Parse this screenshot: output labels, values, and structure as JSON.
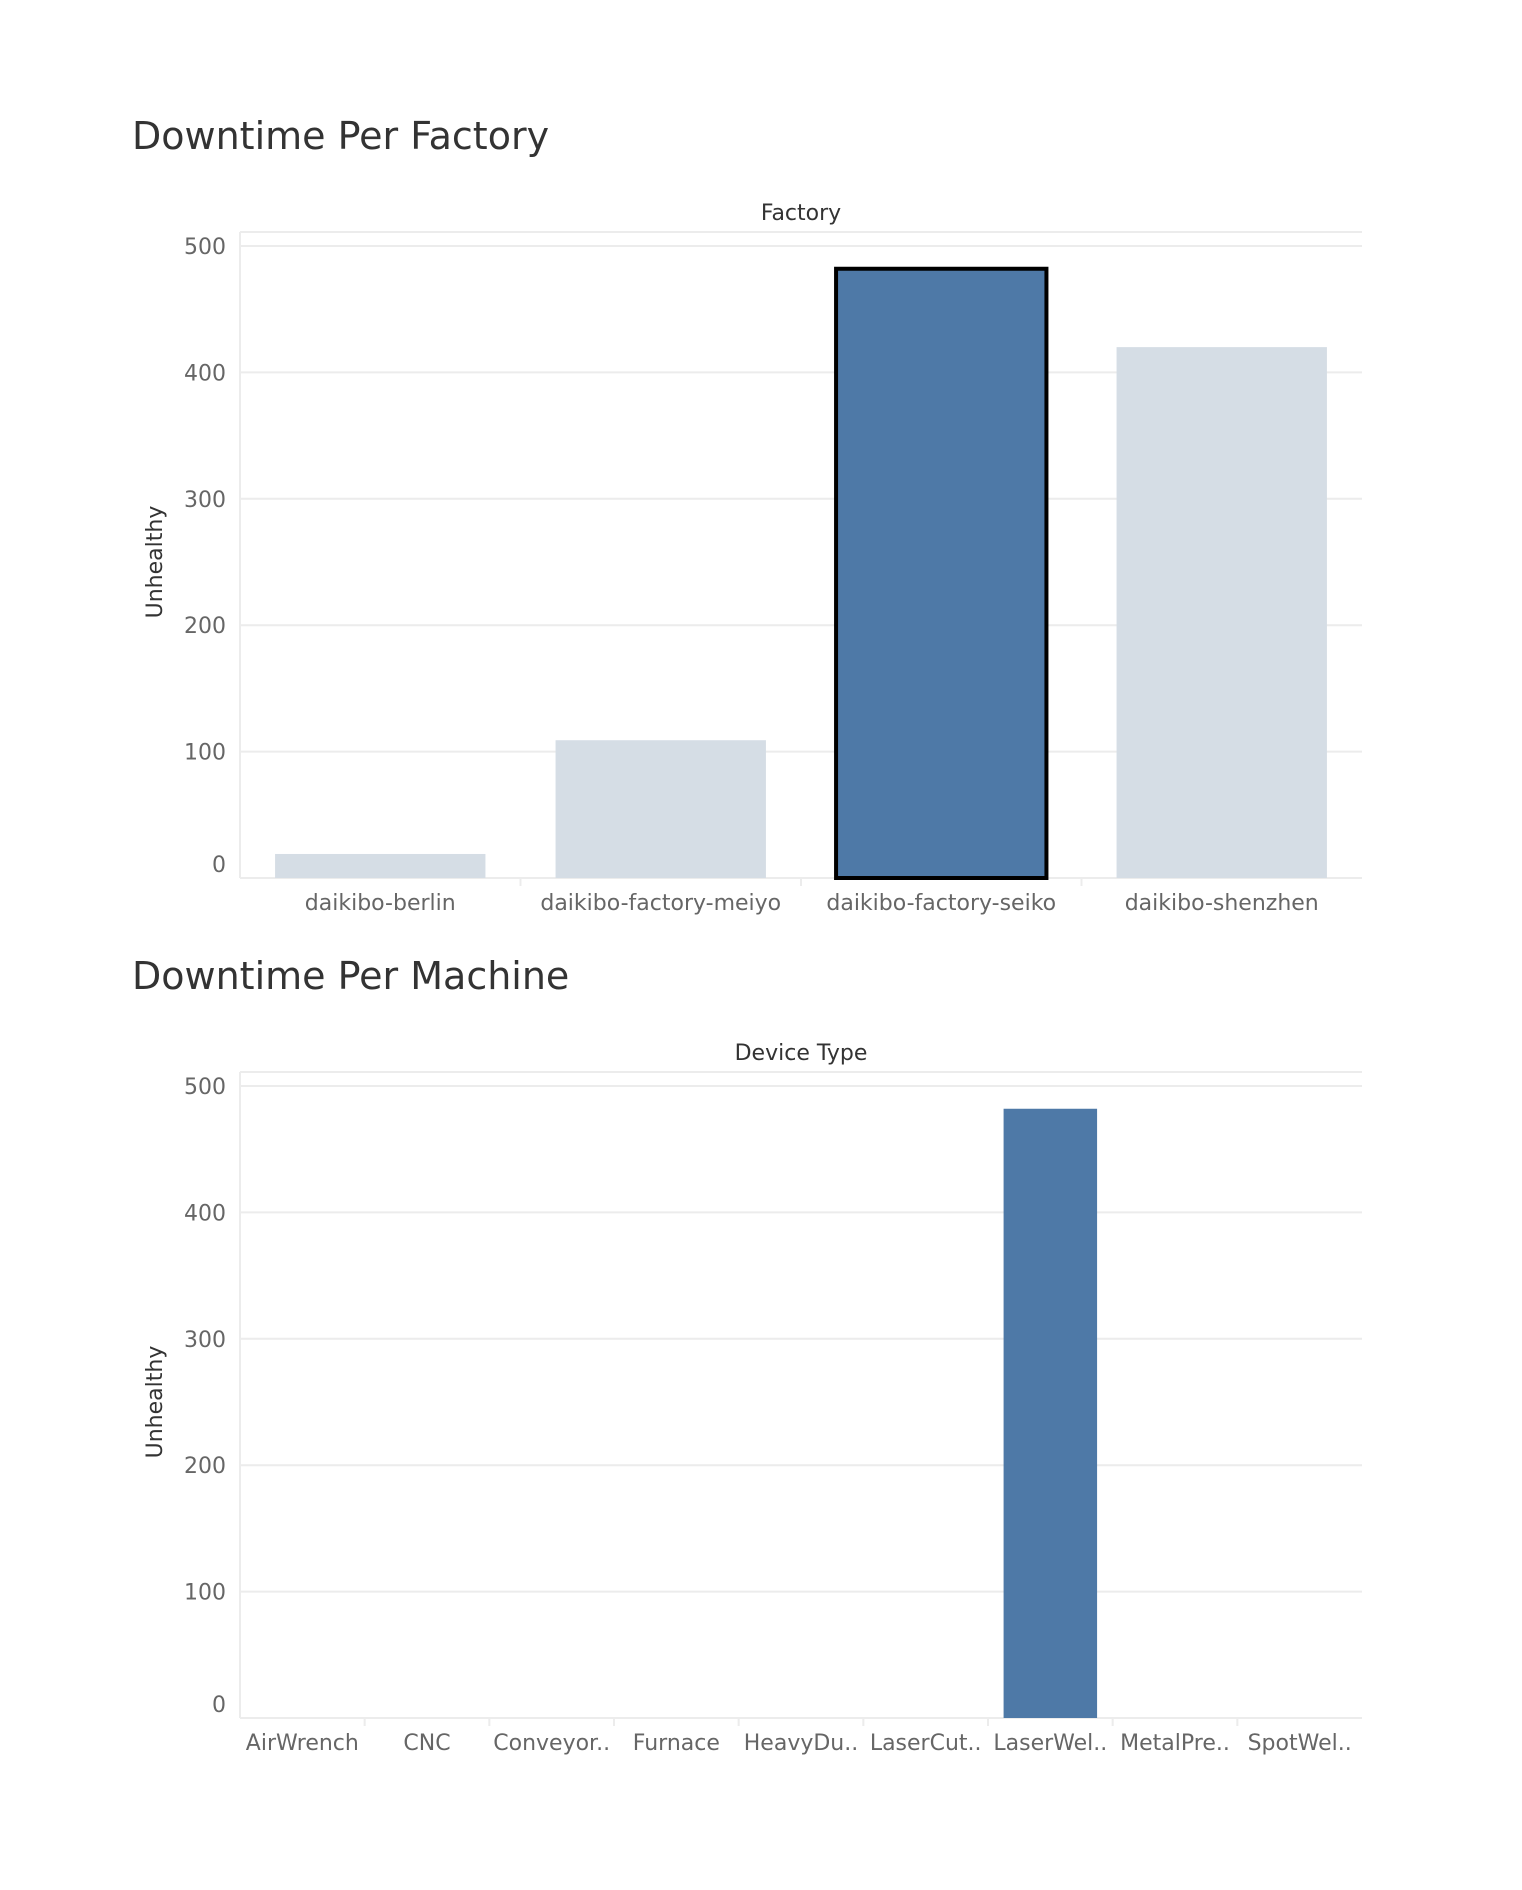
{
  "colors": {
    "bar_selected": "#4e79a7",
    "bar_dimmed": "#d5dde5",
    "selected_outline": "#000000",
    "gridline": "#ececec"
  },
  "chart_data": [
    {
      "type": "bar",
      "title": "Downtime Per Factory",
      "xlabel": "Factory",
      "ylabel": "Unhealthy",
      "ylim": [
        0,
        500
      ],
      "yticks": [
        0,
        100,
        200,
        300,
        400,
        500
      ],
      "categories": [
        "daikibo-berlin",
        "daikibo-factory-meiyo",
        "daikibo-factory-seiko",
        "daikibo-shenzhen"
      ],
      "values": [
        19,
        109,
        482,
        420
      ],
      "selected": [
        "daikibo-factory-seiko"
      ],
      "grid": true
    },
    {
      "type": "bar",
      "title": "Downtime Per Machine",
      "xlabel": "Device Type",
      "ylabel": "Unhealthy",
      "ylim": [
        0,
        500
      ],
      "yticks": [
        0,
        100,
        200,
        300,
        400,
        500
      ],
      "categories": [
        "AirWrench",
        "CNC",
        "Conveyor..",
        "Furnace",
        "HeavyDu..",
        "LaserCut..",
        "LaserWel..",
        "MetalPre..",
        "SpotWel.."
      ],
      "values": [
        0,
        0,
        0,
        0,
        0,
        0,
        482,
        0,
        0
      ],
      "grid": true
    }
  ]
}
